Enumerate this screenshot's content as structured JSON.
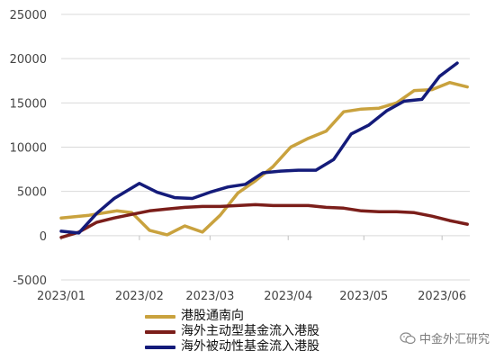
{
  "chart_data": {
    "type": "line",
    "x": [
      "2023/01",
      "2023/02",
      "2023/03",
      "2023/04",
      "2023/05",
      "2023/06"
    ],
    "ylim": [
      -5000,
      25000
    ],
    "yticks": [
      -5000,
      0,
      5000,
      10000,
      15000,
      20000,
      25000
    ],
    "grid": true,
    "legend": "bottom",
    "series": [
      {
        "name": "港股通南向",
        "color": "#C9A23E",
        "points": [
          [
            "2023-01-01",
            2000
          ],
          [
            "2023-01-12",
            2300
          ],
          [
            "2023-01-23",
            2800
          ],
          [
            "2023-01-29",
            2600
          ],
          [
            "2023-02-05",
            600
          ],
          [
            "2023-02-12",
            100
          ],
          [
            "2023-02-19",
            1100
          ],
          [
            "2023-02-26",
            400
          ],
          [
            "2023-03-05",
            2300
          ],
          [
            "2023-03-12",
            4800
          ],
          [
            "2023-03-19",
            6200
          ],
          [
            "2023-03-26",
            7800
          ],
          [
            "2023-04-02",
            10000
          ],
          [
            "2023-04-09",
            11000
          ],
          [
            "2023-04-16",
            11800
          ],
          [
            "2023-04-23",
            14000
          ],
          [
            "2023-04-30",
            14300
          ],
          [
            "2023-05-07",
            14400
          ],
          [
            "2023-05-14",
            15000
          ],
          [
            "2023-05-21",
            16400
          ],
          [
            "2023-05-28",
            16500
          ],
          [
            "2023-06-04",
            17300
          ],
          [
            "2023-06-11",
            16800
          ]
        ]
      },
      {
        "name": "海外主动型基金流入港股",
        "color": "#7B1E1A",
        "points": [
          [
            "2023-01-01",
            -200
          ],
          [
            "2023-01-08",
            400
          ],
          [
            "2023-01-15",
            1500
          ],
          [
            "2023-01-22",
            2000
          ],
          [
            "2023-01-29",
            2400
          ],
          [
            "2023-02-05",
            2800
          ],
          [
            "2023-02-12",
            3000
          ],
          [
            "2023-02-19",
            3200
          ],
          [
            "2023-02-26",
            3300
          ],
          [
            "2023-03-05",
            3300
          ],
          [
            "2023-03-12",
            3400
          ],
          [
            "2023-03-19",
            3500
          ],
          [
            "2023-03-26",
            3400
          ],
          [
            "2023-04-02",
            3400
          ],
          [
            "2023-04-09",
            3400
          ],
          [
            "2023-04-16",
            3200
          ],
          [
            "2023-04-23",
            3100
          ],
          [
            "2023-04-30",
            2800
          ],
          [
            "2023-05-07",
            2700
          ],
          [
            "2023-05-14",
            2700
          ],
          [
            "2023-05-21",
            2600
          ],
          [
            "2023-05-28",
            2200
          ],
          [
            "2023-06-04",
            1700
          ],
          [
            "2023-06-11",
            1300
          ]
        ]
      },
      {
        "name": "海外被动性基金流入港股",
        "color": "#141B7A",
        "points": [
          [
            "2023-01-01",
            500
          ],
          [
            "2023-01-08",
            300
          ],
          [
            "2023-01-15",
            2500
          ],
          [
            "2023-01-22",
            4200
          ],
          [
            "2023-02-01",
            5900
          ],
          [
            "2023-02-08",
            4900
          ],
          [
            "2023-02-15",
            4300
          ],
          [
            "2023-02-22",
            4200
          ],
          [
            "2023-03-01",
            4900
          ],
          [
            "2023-03-08",
            5500
          ],
          [
            "2023-03-15",
            5800
          ],
          [
            "2023-03-22",
            7100
          ],
          [
            "2023-03-29",
            7300
          ],
          [
            "2023-04-05",
            7400
          ],
          [
            "2023-04-12",
            7400
          ],
          [
            "2023-04-19",
            8600
          ],
          [
            "2023-04-26",
            11500
          ],
          [
            "2023-05-03",
            12500
          ],
          [
            "2023-05-10",
            14100
          ],
          [
            "2023-05-17",
            15200
          ],
          [
            "2023-05-24",
            15400
          ],
          [
            "2023-05-31",
            18000
          ],
          [
            "2023-06-07",
            19500
          ]
        ]
      }
    ]
  },
  "watermark": {
    "text": "中金外汇研究",
    "icon": "wechat-icon"
  }
}
